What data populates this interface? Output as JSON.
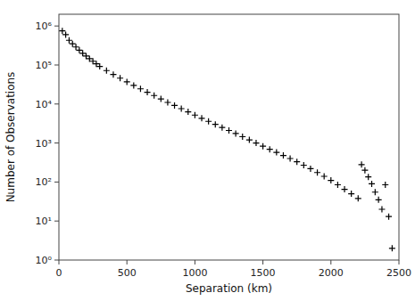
{
  "chart_data": {
    "type": "scatter",
    "xlabel": "Separation (km)",
    "ylabel": "Number of Observations",
    "x": [
      25,
      50,
      75,
      100,
      125,
      150,
      175,
      200,
      225,
      250,
      275,
      300,
      350,
      400,
      450,
      500,
      550,
      600,
      650,
      700,
      750,
      800,
      850,
      900,
      950,
      1000,
      1050,
      1100,
      1150,
      1200,
      1250,
      1300,
      1350,
      1400,
      1450,
      1500,
      1550,
      1600,
      1650,
      1700,
      1750,
      1800,
      1850,
      1900,
      1950,
      2000,
      2050,
      2100,
      2150,
      2200,
      2225,
      2250,
      2275,
      2300,
      2325,
      2350,
      2375,
      2400,
      2425,
      2450
    ],
    "values": [
      750000,
      600000,
      430000,
      350000,
      290000,
      240000,
      200000,
      170000,
      145000,
      125000,
      107000,
      92000,
      72000,
      57000,
      46000,
      37000,
      30000,
      24500,
      20000,
      16500,
      13500,
      11000,
      9200,
      7600,
      6300,
      5200,
      4300,
      3600,
      3000,
      2500,
      2100,
      1750,
      1450,
      1200,
      1000,
      830,
      690,
      575,
      480,
      400,
      330,
      270,
      220,
      175,
      140,
      110,
      85,
      65,
      50,
      38,
      280,
      200,
      135,
      90,
      55,
      35,
      20,
      85,
      13,
      2
    ],
    "xlim": [
      0,
      2500
    ],
    "ylim": [
      1,
      2000000
    ],
    "xticks": [
      0,
      500,
      1000,
      1500,
      2000,
      2500
    ],
    "yticks": [
      {
        "value": 1,
        "label": "10⁰"
      },
      {
        "value": 10,
        "label": "10¹"
      },
      {
        "value": 100,
        "label": "10²"
      },
      {
        "value": 1000,
        "label": "10³"
      },
      {
        "value": 10000,
        "label": "10⁴"
      },
      {
        "value": 100000,
        "label": "10⁵"
      },
      {
        "value": 1000000,
        "label": "10⁶"
      }
    ],
    "log": "y",
    "marker": "plus",
    "color": "black",
    "grid": false
  }
}
